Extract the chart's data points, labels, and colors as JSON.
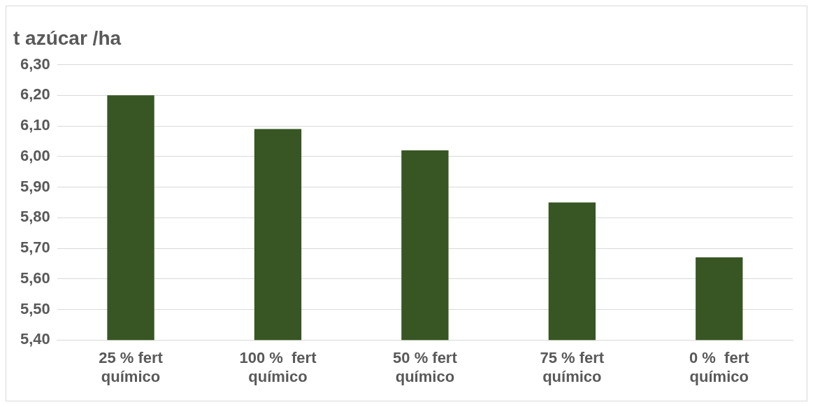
{
  "chart_data": {
    "type": "bar",
    "title": "t azúcar /ha",
    "categories": [
      "25 % fert químico",
      "100 %  fert químico",
      "50 % fert químico",
      "75 % fert químico",
      "0 %  fert químico"
    ],
    "values": [
      6.2,
      6.09,
      6.02,
      5.85,
      5.67
    ],
    "color": "#375623",
    "ylim": [
      5.4,
      6.3
    ],
    "yticks": [
      {
        "value": 5.4,
        "label": "5,40"
      },
      {
        "value": 5.5,
        "label": "5,50"
      },
      {
        "value": 5.6,
        "label": "5,60"
      },
      {
        "value": 5.7,
        "label": "5,70"
      },
      {
        "value": 5.8,
        "label": "5,80"
      },
      {
        "value": 5.9,
        "label": "5,90"
      },
      {
        "value": 6.0,
        "label": "6,00"
      },
      {
        "value": 6.1,
        "label": "6,10"
      },
      {
        "value": 6.2,
        "label": "6,20"
      },
      {
        "value": 6.3,
        "label": "6,30"
      }
    ],
    "grid": "y",
    "legend": false
  }
}
